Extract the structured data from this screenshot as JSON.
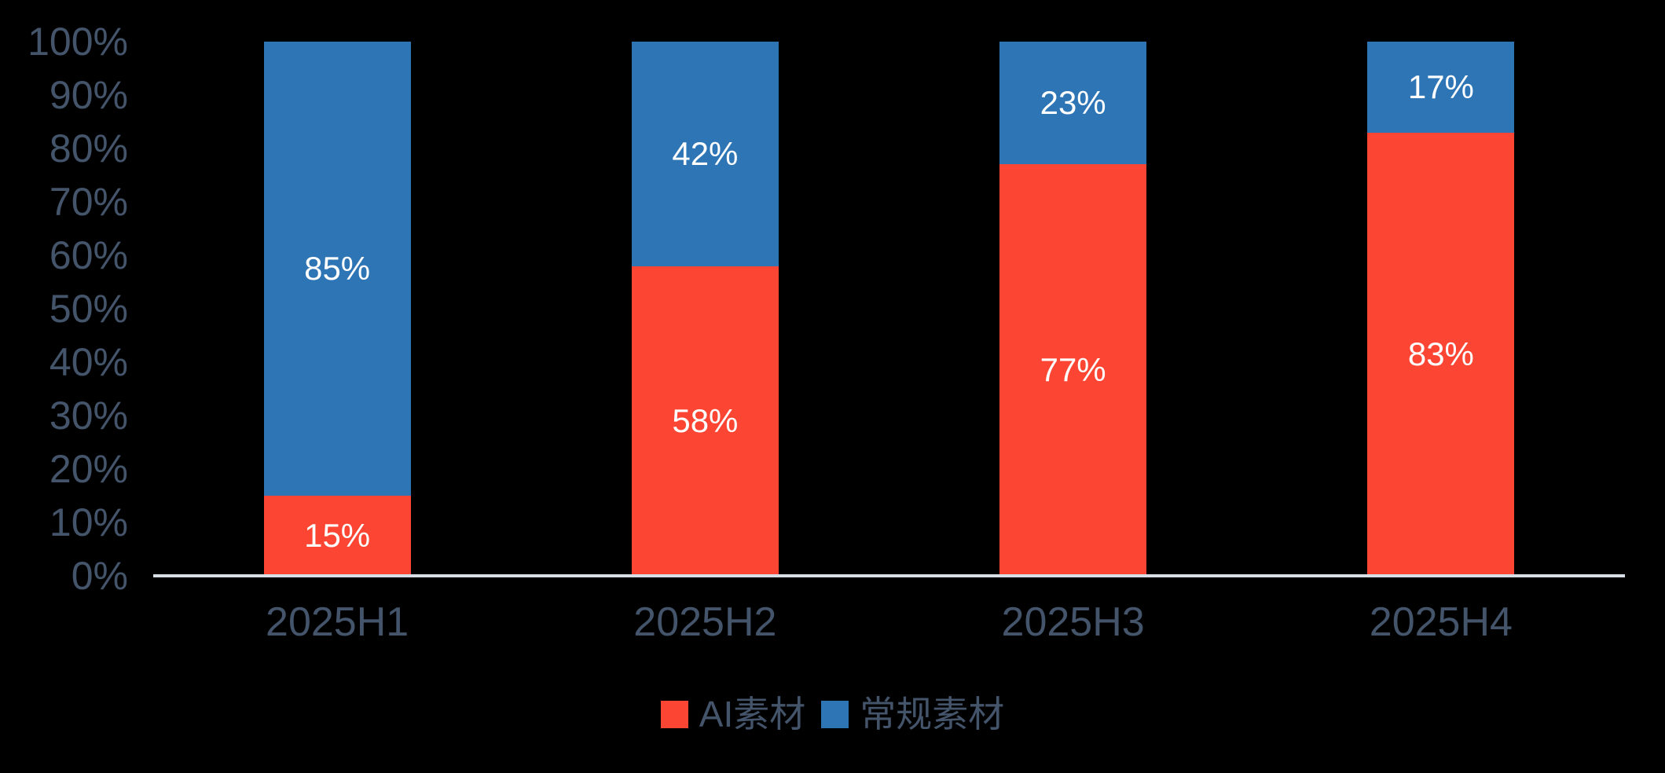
{
  "background_color": "#000000",
  "colors": {
    "series_ai": "#FC4633",
    "series_regular": "#2E75B6",
    "axis_text": "#44546A",
    "axis_line": "#D8DEE6",
    "value_label": "#FFFFFF"
  },
  "chart_data": {
    "type": "bar",
    "stacked": true,
    "percent_stacked": true,
    "title": "",
    "xlabel": "",
    "ylabel": "",
    "ylim": [
      0,
      100
    ],
    "grid": false,
    "legend_position": "bottom",
    "categories": [
      "2025H1",
      "2025H2",
      "2025H3",
      "2025H4"
    ],
    "series": [
      {
        "name": "AI素材",
        "color": "#FC4633",
        "position": "bottom",
        "values": [
          15,
          58,
          77,
          83
        ],
        "value_labels": [
          "15%",
          "58%",
          "77%",
          "83%"
        ]
      },
      {
        "name": "常规素材",
        "color": "#2E75B6",
        "position": "top",
        "values": [
          85,
          42,
          23,
          17
        ],
        "value_labels": [
          "85%",
          "42%",
          "23%",
          "17%"
        ]
      }
    ],
    "y_ticks": [
      "0%",
      "10%",
      "20%",
      "30%",
      "40%",
      "50%",
      "60%",
      "70%",
      "80%",
      "90%",
      "100%"
    ]
  },
  "legend": {
    "items": [
      {
        "label": "AI素材",
        "color": "#FC4633"
      },
      {
        "label": "常规素材",
        "color": "#2E75B6"
      }
    ]
  }
}
